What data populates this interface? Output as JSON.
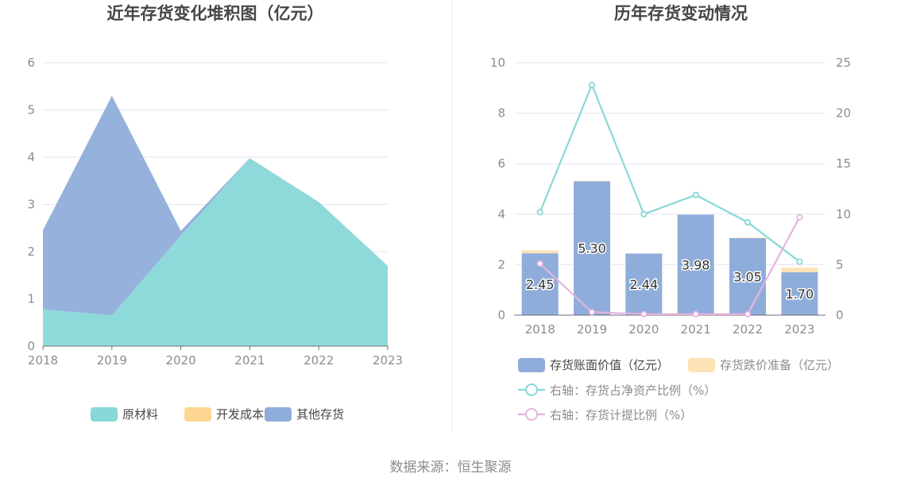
{
  "source_text": "数据来源：恒生聚源",
  "chart_data": [
    {
      "type": "area",
      "stacked": true,
      "title": "近年存货变化堆积图（亿元）",
      "categories": [
        "2018",
        "2019",
        "2020",
        "2021",
        "2022",
        "2023"
      ],
      "ylim": [
        0,
        6
      ],
      "yticks": [
        "0",
        "1",
        "2",
        "3",
        "4",
        "5",
        "6"
      ],
      "grid": true,
      "legend_position": "bottom",
      "series": [
        {
          "name": "原材料",
          "color": "#88d8d8",
          "values": [
            0.78,
            0.65,
            2.34,
            3.97,
            3.05,
            1.7
          ]
        },
        {
          "name": "开发成本",
          "color": "#fdd692",
          "values": [
            0,
            0,
            0,
            0,
            0,
            0
          ]
        },
        {
          "name": "其他存货",
          "color": "#8fadda",
          "values": [
            1.67,
            4.65,
            0.1,
            0.01,
            0,
            0
          ]
        }
      ]
    },
    {
      "type": "bar",
      "title": "历年存货变动情况",
      "categories": [
        "2018",
        "2019",
        "2020",
        "2021",
        "2022",
        "2023"
      ],
      "ylim": [
        0,
        10
      ],
      "yticks": [
        "0",
        "2",
        "4",
        "6",
        "8",
        "10"
      ],
      "y2lim": [
        0,
        25
      ],
      "y2ticks": [
        "0",
        "5",
        "10",
        "15",
        "20",
        "25"
      ],
      "grid": true,
      "legend_position": "bottom",
      "series": [
        {
          "name": "存货账面价值（亿元）",
          "kind": "bar",
          "color": "#8fadda",
          "values": [
            2.45,
            5.3,
            2.44,
            3.98,
            3.05,
            1.7
          ],
          "labels": [
            "2.45",
            "5.30",
            "2.44",
            "3.98",
            "3.05",
            "1.70"
          ]
        },
        {
          "name": "存货跌价准备（亿元）",
          "kind": "bar",
          "color": "#fde3b5",
          "values": [
            0.12,
            0.02,
            0,
            0,
            0.02,
            0.18
          ]
        },
        {
          "name": "右轴：存货占净资产比例（%）",
          "kind": "line",
          "axis": "right",
          "color": "#88d8d8",
          "values": [
            10.2,
            22.8,
            10.0,
            11.9,
            9.2,
            5.3
          ]
        },
        {
          "name": "右轴：存货计提比例（%）",
          "kind": "line",
          "axis": "right",
          "color": "#e6b4dc",
          "values": [
            5.1,
            0.3,
            0.1,
            0.1,
            0.1,
            9.7
          ]
        }
      ]
    }
  ]
}
